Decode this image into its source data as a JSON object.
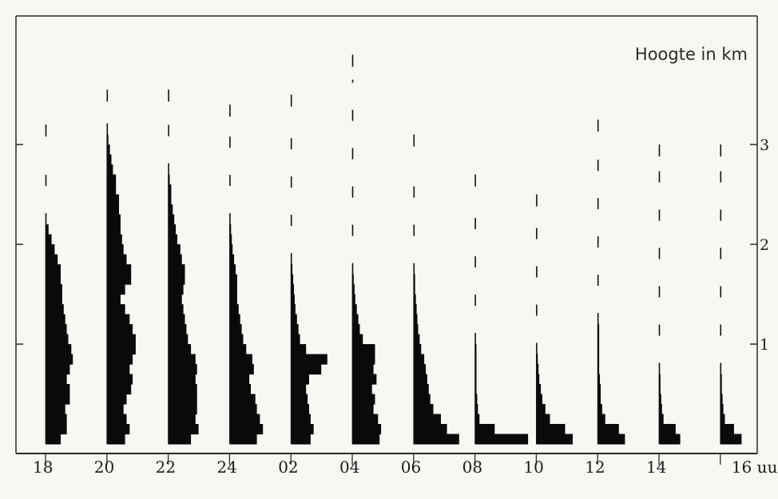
{
  "chart_data": {
    "type": "bar",
    "subtype": "vertical-profile-series",
    "ylabel": "Hoogte in km",
    "ylim": [
      0,
      3.6
    ],
    "yticks": [
      "1",
      "2",
      "3"
    ],
    "xticks": [
      "18",
      "20",
      "22",
      "24",
      "02",
      "04",
      "06",
      "08",
      "10",
      "12",
      "14",
      "16 uur"
    ],
    "grid": false,
    "colors": {
      "bar": "#0a0a0a",
      "background": "#f7f7f3",
      "axis": "#1a1a1a"
    },
    "series": [
      {
        "time": "18",
        "ceiling": 3.2,
        "profile": [
          [
            0.0,
            0.2
          ],
          [
            0.1,
            0.28
          ],
          [
            0.2,
            0.28
          ],
          [
            0.3,
            0.26
          ],
          [
            0.4,
            0.32
          ],
          [
            0.5,
            0.32
          ],
          [
            0.6,
            0.28
          ],
          [
            0.7,
            0.32
          ],
          [
            0.8,
            0.36
          ],
          [
            0.9,
            0.34
          ],
          [
            1.0,
            0.3
          ],
          [
            1.1,
            0.28
          ],
          [
            1.2,
            0.26
          ],
          [
            1.3,
            0.24
          ],
          [
            1.4,
            0.22
          ],
          [
            1.5,
            0.22
          ],
          [
            1.6,
            0.2
          ],
          [
            1.7,
            0.2
          ],
          [
            1.8,
            0.16
          ],
          [
            1.9,
            0.12
          ],
          [
            2.0,
            0.08
          ],
          [
            2.1,
            0.04
          ]
        ]
      },
      {
        "time": "20",
        "ceiling": 3.55,
        "profile": [
          [
            0.0,
            0.24
          ],
          [
            0.1,
            0.3
          ],
          [
            0.2,
            0.26
          ],
          [
            0.3,
            0.22
          ],
          [
            0.4,
            0.26
          ],
          [
            0.5,
            0.32
          ],
          [
            0.6,
            0.34
          ],
          [
            0.7,
            0.3
          ],
          [
            0.8,
            0.34
          ],
          [
            0.9,
            0.38
          ],
          [
            1.0,
            0.38
          ],
          [
            1.1,
            0.34
          ],
          [
            1.2,
            0.3
          ],
          [
            1.3,
            0.24
          ],
          [
            1.4,
            0.18
          ],
          [
            1.5,
            0.24
          ],
          [
            1.6,
            0.32
          ],
          [
            1.7,
            0.32
          ],
          [
            1.8,
            0.26
          ],
          [
            1.9,
            0.22
          ],
          [
            2.0,
            0.2
          ],
          [
            2.1,
            0.18
          ],
          [
            2.2,
            0.18
          ],
          [
            2.3,
            0.16
          ],
          [
            2.4,
            0.16
          ],
          [
            2.5,
            0.12
          ],
          [
            2.6,
            0.12
          ],
          [
            2.7,
            0.08
          ],
          [
            2.8,
            0.06
          ],
          [
            2.9,
            0.04
          ],
          [
            3.0,
            0.02
          ]
        ]
      },
      {
        "time": "22",
        "ceiling": 3.55,
        "profile": [
          [
            0.0,
            0.3
          ],
          [
            0.1,
            0.4
          ],
          [
            0.2,
            0.36
          ],
          [
            0.3,
            0.38
          ],
          [
            0.4,
            0.38
          ],
          [
            0.5,
            0.38
          ],
          [
            0.6,
            0.36
          ],
          [
            0.7,
            0.38
          ],
          [
            0.8,
            0.36
          ],
          [
            0.9,
            0.3
          ],
          [
            1.0,
            0.26
          ],
          [
            1.1,
            0.24
          ],
          [
            1.2,
            0.22
          ],
          [
            1.3,
            0.2
          ],
          [
            1.4,
            0.18
          ],
          [
            1.5,
            0.2
          ],
          [
            1.6,
            0.22
          ],
          [
            1.7,
            0.22
          ],
          [
            1.8,
            0.18
          ],
          [
            1.9,
            0.16
          ],
          [
            2.0,
            0.12
          ],
          [
            2.1,
            0.1
          ],
          [
            2.2,
            0.08
          ],
          [
            2.3,
            0.06
          ],
          [
            2.4,
            0.04
          ],
          [
            2.5,
            0.04
          ],
          [
            2.6,
            0.02
          ]
        ]
      },
      {
        "time": "24",
        "ceiling": 3.4,
        "profile": [
          [
            0.0,
            0.36
          ],
          [
            0.1,
            0.44
          ],
          [
            0.2,
            0.4
          ],
          [
            0.3,
            0.36
          ],
          [
            0.4,
            0.34
          ],
          [
            0.5,
            0.28
          ],
          [
            0.6,
            0.26
          ],
          [
            0.7,
            0.32
          ],
          [
            0.8,
            0.3
          ],
          [
            0.9,
            0.22
          ],
          [
            1.0,
            0.18
          ],
          [
            1.1,
            0.16
          ],
          [
            1.2,
            0.14
          ],
          [
            1.3,
            0.12
          ],
          [
            1.4,
            0.1
          ],
          [
            1.5,
            0.1
          ],
          [
            1.6,
            0.1
          ],
          [
            1.7,
            0.08
          ],
          [
            1.8,
            0.06
          ],
          [
            1.9,
            0.04
          ],
          [
            2.0,
            0.03
          ],
          [
            2.1,
            0.02
          ]
        ]
      },
      {
        "time": "02",
        "ceiling": 3.5,
        "profile": [
          [
            0.0,
            0.26
          ],
          [
            0.1,
            0.3
          ],
          [
            0.2,
            0.26
          ],
          [
            0.3,
            0.24
          ],
          [
            0.4,
            0.22
          ],
          [
            0.5,
            0.2
          ],
          [
            0.6,
            0.24
          ],
          [
            0.7,
            0.4
          ],
          [
            0.8,
            0.48
          ],
          [
            0.9,
            0.2
          ],
          [
            1.0,
            0.12
          ],
          [
            1.1,
            0.1
          ],
          [
            1.2,
            0.08
          ],
          [
            1.3,
            0.06
          ],
          [
            1.4,
            0.05
          ],
          [
            1.5,
            0.04
          ],
          [
            1.6,
            0.03
          ],
          [
            1.7,
            0.02
          ]
        ]
      },
      {
        "time": "04",
        "ceiling": 3.9,
        "profile": [
          [
            0.0,
            0.36
          ],
          [
            0.1,
            0.38
          ],
          [
            0.2,
            0.34
          ],
          [
            0.3,
            0.28
          ],
          [
            0.4,
            0.3
          ],
          [
            0.5,
            0.26
          ],
          [
            0.6,
            0.32
          ],
          [
            0.7,
            0.28
          ],
          [
            0.8,
            0.3
          ],
          [
            0.9,
            0.3
          ],
          [
            1.0,
            0.14
          ],
          [
            1.1,
            0.1
          ],
          [
            1.2,
            0.08
          ],
          [
            1.3,
            0.06
          ],
          [
            1.4,
            0.04
          ],
          [
            1.5,
            0.03
          ],
          [
            1.6,
            0.02
          ]
        ]
      },
      {
        "time": "06",
        "ceiling": 3.1,
        "profile": [
          [
            0.0,
            0.6
          ],
          [
            0.1,
            0.44
          ],
          [
            0.2,
            0.36
          ],
          [
            0.3,
            0.26
          ],
          [
            0.4,
            0.22
          ],
          [
            0.5,
            0.2
          ],
          [
            0.6,
            0.18
          ],
          [
            0.7,
            0.16
          ],
          [
            0.8,
            0.14
          ],
          [
            0.9,
            0.1
          ],
          [
            1.0,
            0.08
          ],
          [
            1.1,
            0.06
          ],
          [
            1.2,
            0.05
          ],
          [
            1.3,
            0.04
          ],
          [
            1.4,
            0.03
          ],
          [
            1.5,
            0.02
          ],
          [
            1.6,
            0.02
          ]
        ]
      },
      {
        "time": "08",
        "ceiling": 2.7,
        "profile": [
          [
            0.0,
            0.7
          ],
          [
            0.1,
            0.26
          ],
          [
            0.2,
            0.06
          ],
          [
            0.3,
            0.04
          ],
          [
            0.4,
            0.03
          ],
          [
            0.5,
            0.02
          ],
          [
            0.6,
            0.02
          ],
          [
            0.7,
            0.02
          ],
          [
            0.8,
            0.02
          ],
          [
            0.9,
            0.02
          ]
        ]
      },
      {
        "time": "10",
        "ceiling": 2.5,
        "profile": [
          [
            0.0,
            0.48
          ],
          [
            0.1,
            0.38
          ],
          [
            0.2,
            0.18
          ],
          [
            0.3,
            0.12
          ],
          [
            0.4,
            0.08
          ],
          [
            0.5,
            0.06
          ],
          [
            0.6,
            0.04
          ],
          [
            0.7,
            0.03
          ],
          [
            0.8,
            0.02
          ]
        ]
      },
      {
        "time": "12",
        "ceiling": 3.25,
        "profile": [
          [
            0.0,
            0.36
          ],
          [
            0.1,
            0.28
          ],
          [
            0.2,
            0.1
          ],
          [
            0.3,
            0.06
          ],
          [
            0.4,
            0.04
          ],
          [
            0.5,
            0.04
          ],
          [
            0.6,
            0.03
          ],
          [
            0.7,
            0.02
          ],
          [
            0.8,
            0.02
          ],
          [
            0.9,
            0.02
          ],
          [
            1.0,
            0.02
          ],
          [
            1.1,
            0.02
          ]
        ]
      },
      {
        "time": "14",
        "ceiling": 3.0,
        "profile": [
          [
            0.0,
            0.28
          ],
          [
            0.1,
            0.22
          ],
          [
            0.2,
            0.06
          ],
          [
            0.3,
            0.04
          ],
          [
            0.4,
            0.03
          ],
          [
            0.5,
            0.02
          ],
          [
            0.6,
            0.02
          ]
        ]
      },
      {
        "time": "16 uur",
        "ceiling": 3.0,
        "profile": [
          [
            0.0,
            0.28
          ],
          [
            0.1,
            0.18
          ],
          [
            0.2,
            0.06
          ],
          [
            0.3,
            0.04
          ],
          [
            0.4,
            0.03
          ],
          [
            0.5,
            0.02
          ],
          [
            0.6,
            0.02
          ]
        ]
      }
    ]
  }
}
